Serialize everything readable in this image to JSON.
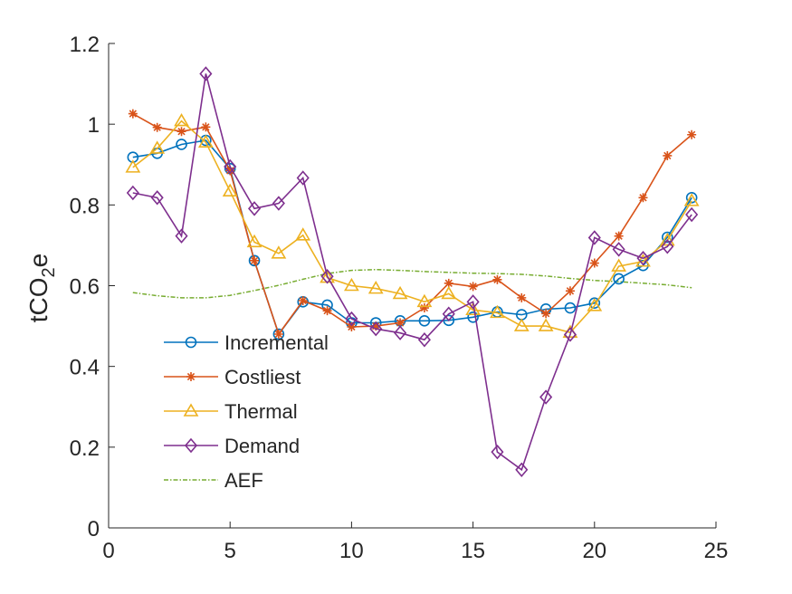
{
  "chart_data": {
    "type": "line",
    "ylabel": "tCO",
    "ylabel_sub": "2",
    "ylabel_suffix": "e",
    "xlabel": "",
    "title": "",
    "xlim": [
      0,
      25
    ],
    "ylim": [
      0,
      1.2
    ],
    "xticks": [
      "0",
      "5",
      "10",
      "15",
      "20",
      "25"
    ],
    "yticks": [
      "0",
      "0.2",
      "0.4",
      "0.6",
      "0.8",
      "1",
      "1.2"
    ],
    "grid": false,
    "legend_position": "lower-left",
    "x": [
      1,
      2,
      3,
      4,
      5,
      6,
      7,
      8,
      9,
      10,
      11,
      12,
      13,
      14,
      15,
      16,
      17,
      18,
      19,
      20,
      21,
      22,
      23,
      24
    ],
    "series": [
      {
        "name": "Incremental",
        "color": "#0072BD",
        "marker": "circle",
        "values": [
          0.918,
          0.928,
          0.95,
          0.96,
          0.89,
          0.662,
          0.48,
          0.56,
          0.552,
          0.508,
          0.508,
          0.513,
          0.513,
          0.514,
          0.522,
          0.535,
          0.528,
          0.542,
          0.545,
          0.557,
          0.617,
          0.65,
          0.72,
          0.818
        ]
      },
      {
        "name": "Costliest",
        "color": "#D95319",
        "marker": "asterisk",
        "values": [
          1.026,
          0.992,
          0.982,
          0.993,
          0.885,
          0.662,
          0.48,
          0.563,
          0.538,
          0.498,
          0.5,
          0.508,
          0.545,
          0.606,
          0.598,
          0.615,
          0.57,
          0.531,
          0.587,
          0.656,
          0.723,
          0.818,
          0.922,
          0.974
        ]
      },
      {
        "name": "Thermal",
        "color": "#EDB120",
        "marker": "triangle",
        "values": [
          0.893,
          0.94,
          1.008,
          0.955,
          0.834,
          0.708,
          0.68,
          0.725,
          0.62,
          0.6,
          0.593,
          0.58,
          0.56,
          0.58,
          0.54,
          0.533,
          0.5,
          0.5,
          0.484,
          0.55,
          0.648,
          0.66,
          0.712,
          0.81
        ]
      },
      {
        "name": "Demand",
        "color": "#7E2F8E",
        "marker": "diamond",
        "values": [
          0.83,
          0.818,
          0.723,
          1.125,
          0.895,
          0.791,
          0.804,
          0.867,
          0.623,
          0.518,
          0.493,
          0.483,
          0.466,
          0.53,
          0.56,
          0.188,
          0.144,
          0.324,
          0.479,
          0.719,
          0.69,
          0.668,
          0.697,
          0.776
        ]
      },
      {
        "name": "AEF",
        "color": "#77AC30",
        "marker": "none",
        "dash": "dashdot",
        "values": [
          0.583,
          0.575,
          0.57,
          0.57,
          0.576,
          0.588,
          0.601,
          0.616,
          0.63,
          0.638,
          0.64,
          0.638,
          0.635,
          0.633,
          0.631,
          0.63,
          0.628,
          0.624,
          0.618,
          0.613,
          0.61,
          0.606,
          0.602,
          0.595
        ]
      }
    ]
  }
}
